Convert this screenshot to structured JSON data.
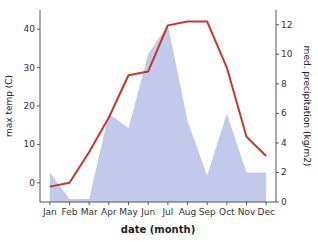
{
  "chart_data": {
    "type": "line",
    "xlabel": "date (month)",
    "ylabel": "max temp (C)",
    "y2label": "med. precipitation (kg/m2)",
    "categories": [
      "Jan",
      "Feb",
      "Mar",
      "Apr",
      "May",
      "Jun",
      "Jul",
      "Aug",
      "Sep",
      "Oct",
      "Nov",
      "Dec"
    ],
    "series": [
      {
        "type": "line",
        "color": "#c0392b",
        "values": [
          -1,
          0,
          8,
          17,
          28,
          29,
          41,
          42,
          42,
          30,
          12,
          7
        ]
      },
      {
        "type": "area",
        "axis": "y2",
        "color": "#b8c0e8",
        "values": [
          2.0,
          0.2,
          0.2,
          6.0,
          5.0,
          10.0,
          12.0,
          5.5,
          1.8,
          6.0,
          2.0,
          2.0
        ]
      }
    ],
    "ylim": [
      -5,
      45
    ],
    "yticks": [
      0,
      10,
      20,
      30,
      40
    ],
    "y2lim": [
      0,
      13
    ],
    "y2ticks": [
      0,
      2,
      4,
      6,
      8,
      10,
      12
    ],
    "grid": false
  }
}
